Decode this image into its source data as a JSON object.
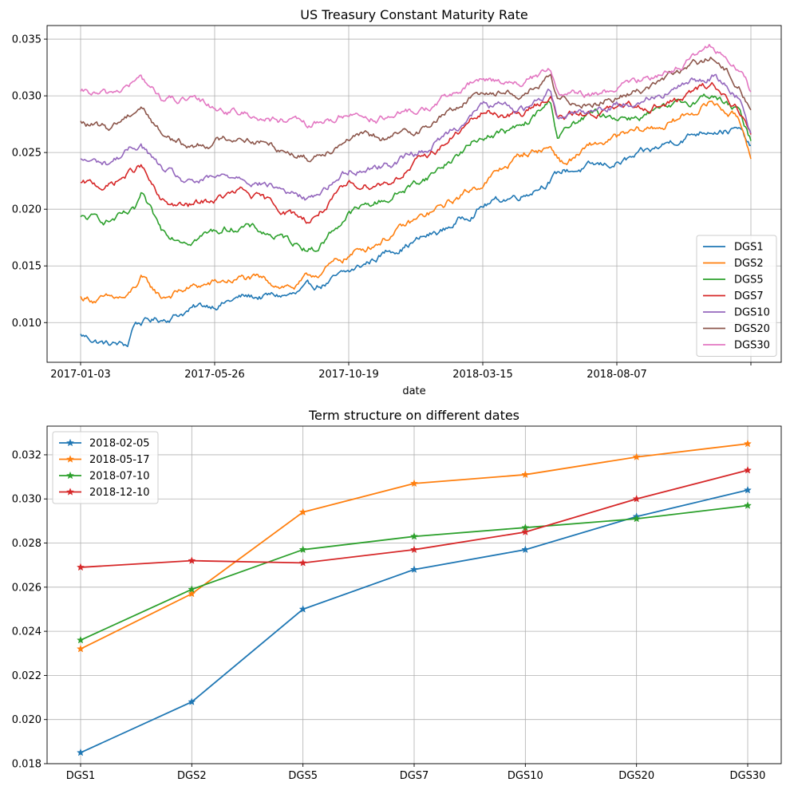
{
  "chart_data": [
    {
      "type": "line",
      "title": "US Treasury Constant Maturity Rate",
      "xlabel": "date",
      "ylabel": "",
      "x_tick_labels": [
        "2017-01-03",
        "2017-05-26",
        "2017-10-19",
        "2018-03-15",
        "2018-08-07",
        ""
      ],
      "ylim": [
        0.0065,
        0.0362
      ],
      "yticks": [
        0.01,
        0.015,
        0.02,
        0.025,
        0.03,
        0.035
      ],
      "grid": true,
      "legend": "lower-right",
      "n_points": 500,
      "series_colors": [
        "#1f77b4",
        "#ff7f0e",
        "#2ca02c",
        "#d62728",
        "#9467bd",
        "#8c564b",
        "#e377c2"
      ],
      "series": [
        {
          "name": "DGS1",
          "x": [
            0,
            20,
            35,
            40,
            60,
            80,
            120,
            160,
            200,
            230,
            270,
            300,
            330,
            360,
            390,
            410,
            425,
            440,
            470,
            490,
            499
          ],
          "values": [
            0.0089,
            0.0081,
            0.008,
            0.01,
            0.0103,
            0.0111,
            0.0122,
            0.0124,
            0.0143,
            0.0164,
            0.0181,
            0.0204,
            0.0214,
            0.0234,
            0.0238,
            0.0244,
            0.025,
            0.026,
            0.0272,
            0.027,
            0.0253
          ]
        },
        {
          "name": "DGS2",
          "x": [
            0,
            20,
            35,
            45,
            60,
            80,
            120,
            160,
            200,
            230,
            270,
            300,
            330,
            350,
            360,
            380,
            410,
            440,
            470,
            490,
            499
          ],
          "values": [
            0.0122,
            0.012,
            0.0121,
            0.0138,
            0.0122,
            0.013,
            0.0139,
            0.0132,
            0.0159,
            0.0177,
            0.0202,
            0.0224,
            0.0249,
            0.0255,
            0.024,
            0.0255,
            0.0266,
            0.0276,
            0.0295,
            0.028,
            0.025
          ]
        },
        {
          "name": "DGS5",
          "x": [
            0,
            20,
            40,
            45,
            60,
            80,
            120,
            160,
            175,
            200,
            230,
            260,
            300,
            330,
            350,
            355,
            380,
            410,
            440,
            470,
            490,
            499
          ],
          "values": [
            0.0192,
            0.019,
            0.0196,
            0.021,
            0.018,
            0.0175,
            0.0186,
            0.017,
            0.0165,
            0.0197,
            0.021,
            0.023,
            0.0265,
            0.0272,
            0.0295,
            0.0265,
            0.0283,
            0.0282,
            0.0288,
            0.0302,
            0.0285,
            0.026
          ]
        },
        {
          "name": "DGS7",
          "x": [
            0,
            20,
            45,
            60,
            80,
            120,
            160,
            170,
            200,
            230,
            260,
            300,
            330,
            350,
            355,
            380,
            410,
            440,
            470,
            490,
            499
          ],
          "values": [
            0.0222,
            0.022,
            0.0238,
            0.0205,
            0.0202,
            0.0215,
            0.0195,
            0.019,
            0.022,
            0.0225,
            0.0248,
            0.0285,
            0.0283,
            0.0302,
            0.028,
            0.0285,
            0.029,
            0.0294,
            0.031,
            0.029,
            0.0265
          ]
        },
        {
          "name": "DGS10",
          "x": [
            0,
            20,
            45,
            60,
            80,
            120,
            160,
            170,
            200,
            230,
            260,
            300,
            330,
            350,
            355,
            380,
            410,
            440,
            470,
            490,
            499
          ],
          "values": [
            0.0243,
            0.024,
            0.0258,
            0.0235,
            0.0222,
            0.023,
            0.0213,
            0.0208,
            0.0235,
            0.024,
            0.0255,
            0.0292,
            0.0288,
            0.0305,
            0.0285,
            0.0288,
            0.0295,
            0.0305,
            0.0318,
            0.03,
            0.027
          ]
        },
        {
          "name": "DGS20",
          "x": [
            0,
            20,
            45,
            60,
            80,
            120,
            160,
            170,
            200,
            230,
            260,
            300,
            330,
            350,
            355,
            380,
            410,
            440,
            470,
            490,
            499
          ],
          "values": [
            0.0276,
            0.027,
            0.0292,
            0.0268,
            0.0255,
            0.0265,
            0.025,
            0.0245,
            0.0265,
            0.0262,
            0.0275,
            0.0305,
            0.0302,
            0.0315,
            0.0295,
            0.0295,
            0.0302,
            0.0318,
            0.0333,
            0.031,
            0.0288
          ]
        },
        {
          "name": "DGS30",
          "x": [
            0,
            20,
            45,
            60,
            80,
            120,
            160,
            170,
            200,
            230,
            260,
            300,
            330,
            350,
            355,
            380,
            410,
            440,
            470,
            490,
            499
          ],
          "values": [
            0.0302,
            0.03,
            0.0315,
            0.0298,
            0.0295,
            0.0285,
            0.0275,
            0.0272,
            0.0285,
            0.028,
            0.029,
            0.0315,
            0.0312,
            0.0322,
            0.03,
            0.03,
            0.031,
            0.0325,
            0.0342,
            0.0325,
            0.0303
          ]
        }
      ]
    },
    {
      "type": "line",
      "title": "Term structure on different dates",
      "xlabel": "",
      "ylabel": "",
      "categories": [
        "DGS1",
        "DGS2",
        "DGS5",
        "DGS7",
        "DGS10",
        "DGS20",
        "DGS30"
      ],
      "ylim": [
        0.018,
        0.0333
      ],
      "yticks": [
        0.018,
        0.02,
        0.022,
        0.024,
        0.026,
        0.028,
        0.03,
        0.032
      ],
      "grid": true,
      "legend": "top-left",
      "marker": "star",
      "series_colors": [
        "#1f77b4",
        "#ff7f0e",
        "#2ca02c",
        "#d62728"
      ],
      "series": [
        {
          "name": "2018-02-05",
          "values": [
            0.0185,
            0.0208,
            0.025,
            0.0268,
            0.0277,
            0.0292,
            0.0304
          ]
        },
        {
          "name": "2018-05-17",
          "values": [
            0.0232,
            0.0257,
            0.0294,
            0.0307,
            0.0311,
            0.0319,
            0.0325
          ]
        },
        {
          "name": "2018-07-10",
          "values": [
            0.0236,
            0.0259,
            0.0277,
            0.0283,
            0.0287,
            0.0291,
            0.0297
          ]
        },
        {
          "name": "2018-12-10",
          "values": [
            0.0269,
            0.0272,
            0.0271,
            0.0277,
            0.0285,
            0.03,
            0.0313
          ]
        }
      ]
    }
  ]
}
